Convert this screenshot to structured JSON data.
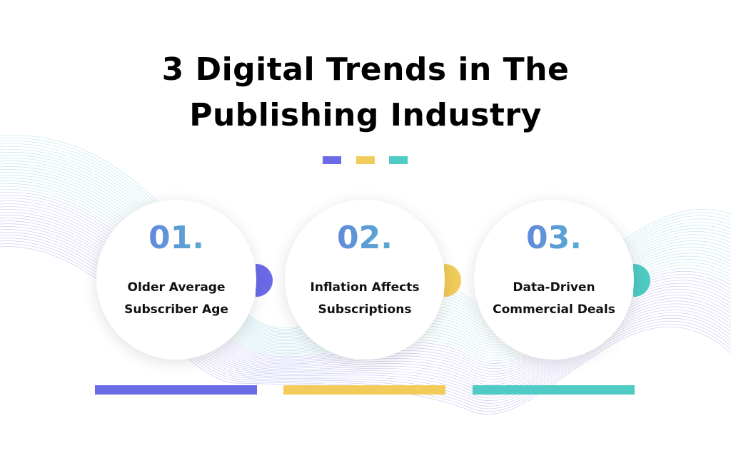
{
  "header": {
    "title": "3 Digital Trends in The Publishing Industry"
  },
  "items": [
    {
      "number": "01.",
      "label": "Older Average Subscriber Age"
    },
    {
      "number": "02.",
      "label": "Inflation Affects Subscriptions"
    },
    {
      "number": "03.",
      "label": "Data-Driven Commercial Deals"
    }
  ]
}
